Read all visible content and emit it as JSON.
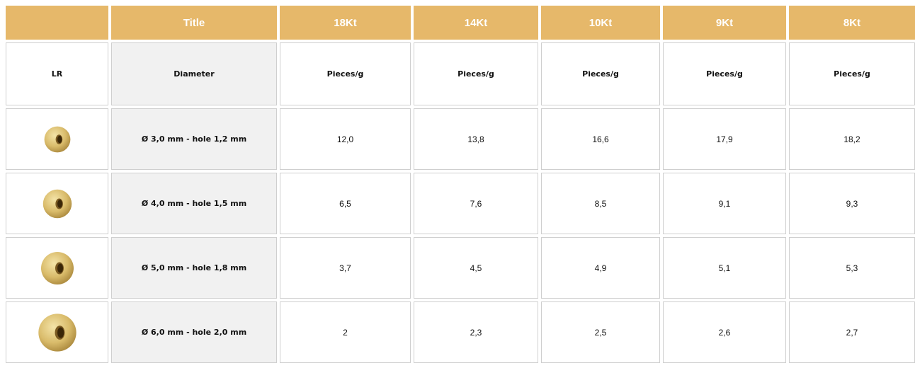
{
  "table": {
    "header": [
      "Title",
      "18Kt",
      "14Kt",
      "10Kt",
      "9Kt",
      "8Kt"
    ],
    "subheader": [
      "LR",
      "Diameter",
      "Pieces/g",
      "Pieces/g",
      "Pieces/g",
      "Pieces/g",
      "Pieces/g"
    ],
    "rows": [
      {
        "label": "Ø 3,0 mm - hole 1,2 mm",
        "values": [
          "12,0",
          "13,8",
          "16,6",
          "17,9",
          "18,2"
        ]
      },
      {
        "label": "Ø 4,0 mm - hole 1,5 mm",
        "values": [
          "6,5",
          "7,6",
          "8,5",
          "9,1",
          "9,3"
        ]
      },
      {
        "label": "Ø 5,0 mm - hole 1,8 mm",
        "values": [
          "3,7",
          "4,5",
          "4,9",
          "5,1",
          "5,3"
        ]
      },
      {
        "label": "Ø 6,0 mm - hole 2,0 mm",
        "values": [
          "2",
          "2,3",
          "2,5",
          "2,6",
          "2,7"
        ]
      }
    ]
  }
}
